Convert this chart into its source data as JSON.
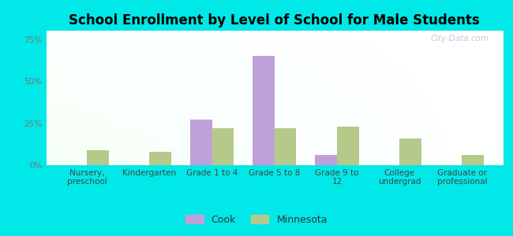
{
  "title": "School Enrollment by Level of School for Male Students",
  "categories": [
    "Nursery,\npreschool",
    "Kindergarten",
    "Grade 1 to 4",
    "Grade 5 to 8",
    "Grade 9 to\n12",
    "College\nundergrad",
    "Graduate or\nprofessional"
  ],
  "cook_values": [
    0,
    0,
    27,
    65,
    6,
    0,
    0
  ],
  "minnesota_values": [
    9,
    8,
    22,
    22,
    23,
    16,
    6
  ],
  "cook_color": "#c0a0d8",
  "minnesota_color": "#b5c98a",
  "background_color": "#00e8e8",
  "title_fontsize": 12,
  "tick_label_fontsize": 7.5,
  "legend_fontsize": 9,
  "yticks": [
    0,
    25,
    50,
    75
  ],
  "ylim": [
    0,
    80
  ],
  "bar_width": 0.35,
  "watermark": "City-Data.com",
  "legend_labels": [
    "Cook",
    "Minnesota"
  ]
}
